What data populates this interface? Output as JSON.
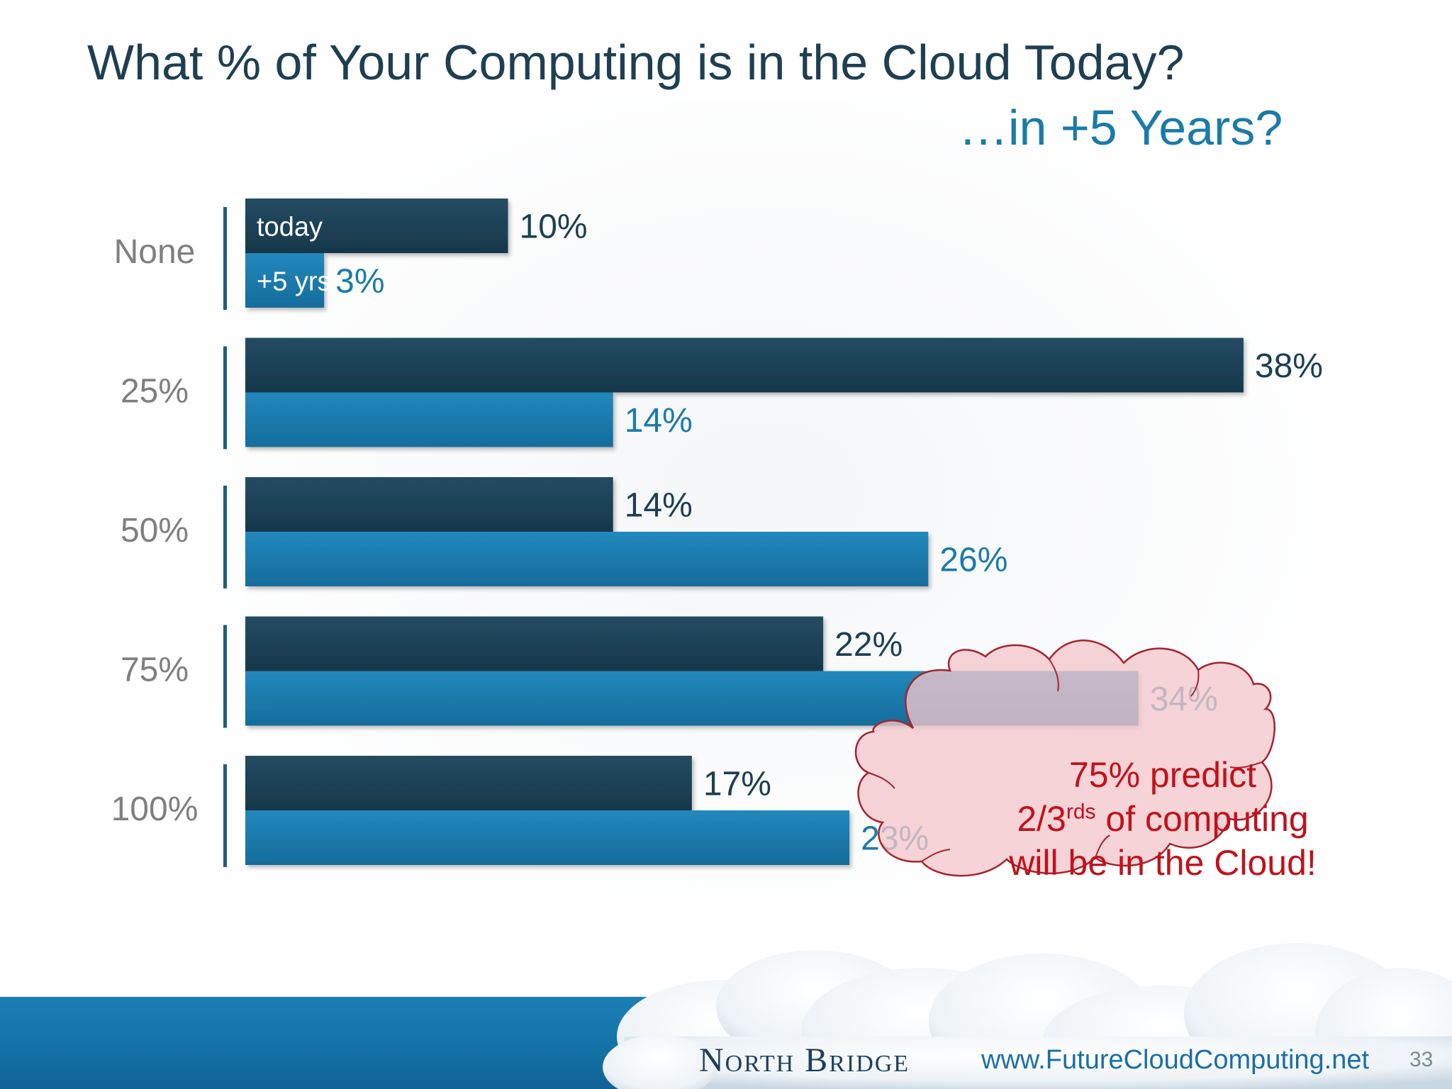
{
  "slide": {
    "title": "What % of Your Computing is in the Cloud Today?",
    "subtitle": "…in +5 Years?",
    "brand": "North Bridge",
    "url": "www.FutureCloudComputing.net",
    "page_number": "33"
  },
  "callout": {
    "line1": "75% predict",
    "line2_prefix": "2/3",
    "line2_sup": "rds",
    "line2_suffix": " of computing",
    "line3": "will be in the Cloud!"
  },
  "chart_data": {
    "type": "bar",
    "orientation": "horizontal",
    "categories": [
      "None",
      "25%",
      "50%",
      "75%",
      "100%"
    ],
    "series": [
      {
        "name": "today",
        "values": [
          10,
          38,
          14,
          22,
          17
        ],
        "color": "#1b3f52"
      },
      {
        "name": "+5 yrs",
        "values": [
          3,
          14,
          26,
          34,
          23
        ],
        "color": "#1a7dae"
      }
    ],
    "data_labels": [
      [
        "10%",
        "38%",
        "14%",
        "22%",
        "17%"
      ],
      [
        "3%",
        "14%",
        "26%",
        "34%",
        "23%"
      ]
    ],
    "label_colors": [
      "#1b3f52",
      "#1a7ba8"
    ],
    "category_label_color": "#7f7f7f",
    "xlim": [
      0,
      40
    ]
  },
  "colors": {
    "title": "#1e3f52",
    "subtitle": "#1a7ba8",
    "callout_text": "#c2111b",
    "callout_fill": "#f2c6cb",
    "callout_stroke": "#a5232e",
    "footer_band": "#1a78ae"
  }
}
